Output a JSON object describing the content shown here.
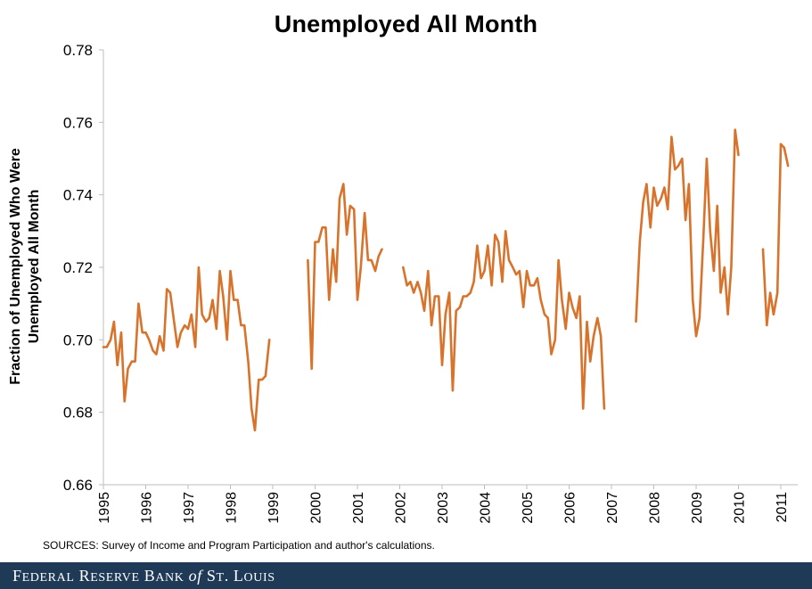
{
  "chart_data": {
    "type": "line",
    "title": "Unemployed All Month",
    "ylabel": "Fraction of Unemployed Who Were Unemployed All Month",
    "ylabel_lines": [
      "Fraction of Unemployed Who Were",
      "Unemployed All Month"
    ],
    "xlabel": "",
    "xlim": [
      1995,
      2011.4
    ],
    "ylim": [
      0.66,
      0.78
    ],
    "yticks": [
      0.66,
      0.68,
      0.7,
      0.72,
      0.74,
      0.76,
      0.78
    ],
    "ytick_labels": [
      "0.66",
      "0.68",
      "0.70",
      "0.72",
      "0.74",
      "0.76",
      "0.78"
    ],
    "xticks": [
      1995,
      1996,
      1997,
      1998,
      1999,
      2000,
      2001,
      2002,
      2003,
      2004,
      2005,
      2006,
      2007,
      2008,
      2009,
      2010,
      2011
    ],
    "xtick_labels": [
      "1995",
      "1996",
      "1997",
      "1998",
      "1999",
      "2000",
      "2001",
      "2002",
      "2003",
      "2004",
      "2005",
      "2006",
      "2007",
      "2008",
      "2009",
      "2010",
      "2011"
    ],
    "grid": false,
    "line_color": "#d9722a",
    "series": [
      {
        "segments": [
          [
            [
              1995.0,
              0.698
            ],
            [
              1995.08,
              0.698
            ],
            [
              1995.17,
              0.7
            ],
            [
              1995.25,
              0.705
            ],
            [
              1995.33,
              0.693
            ],
            [
              1995.42,
              0.702
            ],
            [
              1995.5,
              0.683
            ],
            [
              1995.58,
              0.692
            ],
            [
              1995.67,
              0.694
            ],
            [
              1995.75,
              0.694
            ],
            [
              1995.83,
              0.71
            ],
            [
              1995.92,
              0.702
            ],
            [
              1996.0,
              0.702
            ],
            [
              1996.08,
              0.7
            ],
            [
              1996.17,
              0.697
            ],
            [
              1996.25,
              0.696
            ],
            [
              1996.33,
              0.701
            ],
            [
              1996.42,
              0.697
            ],
            [
              1996.5,
              0.714
            ],
            [
              1996.58,
              0.713
            ],
            [
              1996.67,
              0.705
            ],
            [
              1996.75,
              0.698
            ],
            [
              1996.83,
              0.702
            ],
            [
              1996.92,
              0.704
            ],
            [
              1997.0,
              0.703
            ],
            [
              1997.08,
              0.707
            ],
            [
              1997.17,
              0.698
            ],
            [
              1997.25,
              0.72
            ],
            [
              1997.33,
              0.707
            ],
            [
              1997.42,
              0.705
            ],
            [
              1997.5,
              0.706
            ],
            [
              1997.58,
              0.711
            ],
            [
              1997.67,
              0.703
            ],
            [
              1997.75,
              0.719
            ],
            [
              1997.83,
              0.712
            ],
            [
              1997.92,
              0.7
            ],
            [
              1998.0,
              0.719
            ],
            [
              1998.08,
              0.711
            ],
            [
              1998.17,
              0.711
            ],
            [
              1998.25,
              0.704
            ],
            [
              1998.33,
              0.704
            ],
            [
              1998.42,
              0.694
            ],
            [
              1998.5,
              0.681
            ],
            [
              1998.58,
              0.675
            ],
            [
              1998.67,
              0.689
            ],
            [
              1998.75,
              0.689
            ],
            [
              1998.83,
              0.69
            ],
            [
              1998.92,
              0.7
            ]
          ],
          [
            [
              1999.83,
              0.722
            ],
            [
              1999.92,
              0.692
            ],
            [
              2000.0,
              0.727
            ],
            [
              2000.08,
              0.727
            ],
            [
              2000.17,
              0.731
            ],
            [
              2000.25,
              0.731
            ],
            [
              2000.33,
              0.711
            ],
            [
              2000.42,
              0.725
            ],
            [
              2000.5,
              0.716
            ],
            [
              2000.58,
              0.739
            ],
            [
              2000.67,
              0.743
            ],
            [
              2000.75,
              0.729
            ],
            [
              2000.83,
              0.737
            ],
            [
              2000.92,
              0.736
            ],
            [
              2001.0,
              0.711
            ],
            [
              2001.08,
              0.72
            ],
            [
              2001.17,
              0.735
            ],
            [
              2001.25,
              0.722
            ],
            [
              2001.33,
              0.722
            ],
            [
              2001.42,
              0.719
            ],
            [
              2001.5,
              0.723
            ],
            [
              2001.58,
              0.725
            ]
          ],
          [
            [
              2002.08,
              0.72
            ],
            [
              2002.17,
              0.715
            ],
            [
              2002.25,
              0.716
            ],
            [
              2002.33,
              0.713
            ],
            [
              2002.42,
              0.716
            ],
            [
              2002.5,
              0.713
            ],
            [
              2002.58,
              0.708
            ],
            [
              2002.67,
              0.719
            ],
            [
              2002.75,
              0.704
            ],
            [
              2002.83,
              0.712
            ],
            [
              2002.92,
              0.712
            ],
            [
              2003.0,
              0.693
            ],
            [
              2003.08,
              0.707
            ],
            [
              2003.17,
              0.713
            ],
            [
              2003.25,
              0.686
            ],
            [
              2003.33,
              0.708
            ],
            [
              2003.42,
              0.709
            ],
            [
              2003.5,
              0.712
            ],
            [
              2003.58,
              0.712
            ],
            [
              2003.67,
              0.713
            ],
            [
              2003.75,
              0.716
            ],
            [
              2003.83,
              0.726
            ],
            [
              2003.92,
              0.717
            ],
            [
              2004.0,
              0.719
            ],
            [
              2004.08,
              0.726
            ],
            [
              2004.17,
              0.715
            ],
            [
              2004.25,
              0.729
            ],
            [
              2004.33,
              0.727
            ],
            [
              2004.42,
              0.716
            ],
            [
              2004.5,
              0.73
            ],
            [
              2004.58,
              0.722
            ],
            [
              2004.67,
              0.72
            ],
            [
              2004.75,
              0.718
            ],
            [
              2004.83,
              0.719
            ],
            [
              2004.92,
              0.709
            ],
            [
              2005.0,
              0.719
            ],
            [
              2005.08,
              0.715
            ],
            [
              2005.17,
              0.715
            ],
            [
              2005.25,
              0.717
            ],
            [
              2005.33,
              0.711
            ],
            [
              2005.42,
              0.707
            ],
            [
              2005.5,
              0.706
            ],
            [
              2005.58,
              0.696
            ],
            [
              2005.67,
              0.7
            ],
            [
              2005.75,
              0.722
            ],
            [
              2005.83,
              0.711
            ],
            [
              2005.92,
              0.703
            ],
            [
              2006.0,
              0.713
            ],
            [
              2006.08,
              0.709
            ],
            [
              2006.17,
              0.706
            ],
            [
              2006.25,
              0.712
            ],
            [
              2006.33,
              0.681
            ],
            [
              2006.42,
              0.705
            ],
            [
              2006.5,
              0.694
            ],
            [
              2006.58,
              0.701
            ],
            [
              2006.67,
              0.706
            ],
            [
              2006.75,
              0.701
            ],
            [
              2006.83,
              0.681
            ]
          ],
          [
            [
              2007.58,
              0.705
            ],
            [
              2007.67,
              0.727
            ],
            [
              2007.75,
              0.738
            ],
            [
              2007.83,
              0.743
            ],
            [
              2007.92,
              0.731
            ],
            [
              2008.0,
              0.742
            ],
            [
              2008.08,
              0.737
            ],
            [
              2008.17,
              0.739
            ],
            [
              2008.25,
              0.742
            ],
            [
              2008.33,
              0.736
            ],
            [
              2008.42,
              0.756
            ],
            [
              2008.5,
              0.747
            ],
            [
              2008.58,
              0.748
            ],
            [
              2008.67,
              0.75
            ],
            [
              2008.75,
              0.733
            ],
            [
              2008.83,
              0.743
            ],
            [
              2008.92,
              0.711
            ],
            [
              2009.0,
              0.701
            ],
            [
              2009.08,
              0.706
            ],
            [
              2009.17,
              0.728
            ],
            [
              2009.25,
              0.75
            ],
            [
              2009.33,
              0.73
            ],
            [
              2009.42,
              0.719
            ],
            [
              2009.5,
              0.737
            ],
            [
              2009.58,
              0.713
            ],
            [
              2009.67,
              0.72
            ],
            [
              2009.75,
              0.707
            ],
            [
              2009.83,
              0.72
            ],
            [
              2009.92,
              0.758
            ],
            [
              2010.0,
              0.751
            ]
          ],
          [
            [
              2010.58,
              0.725
            ],
            [
              2010.67,
              0.704
            ],
            [
              2010.75,
              0.713
            ],
            [
              2010.83,
              0.707
            ],
            [
              2010.92,
              0.713
            ],
            [
              2011.0,
              0.754
            ],
            [
              2011.08,
              0.753
            ],
            [
              2011.17,
              0.748
            ]
          ]
        ]
      }
    ]
  },
  "sources_note": "SOURCES: Survey of Income and Program Participation and author's calculations.",
  "footer": {
    "organization": "Federal Reserve Bank of St. Louis",
    "text_parts": [
      "Federal Reserve Bank ",
      "of",
      " St. Louis"
    ]
  }
}
